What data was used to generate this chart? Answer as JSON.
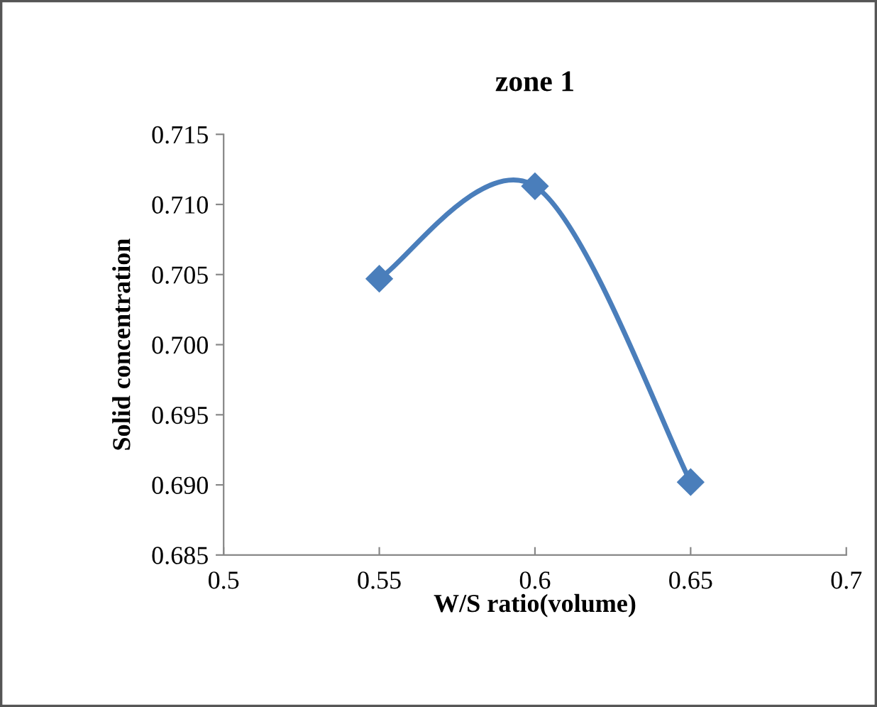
{
  "chart_data": {
    "type": "line",
    "title": "zone 1",
    "xlabel": "W/S ratio(volume)",
    "ylabel": "Solid concentration",
    "x": [
      0.55,
      0.6,
      0.65
    ],
    "series": [
      {
        "color": "#4a7ebb",
        "values": [
          0.7047,
          0.7113,
          0.6902
        ]
      }
    ],
    "xlim": [
      0.5,
      0.7
    ],
    "xticks": [
      0.5,
      0.55,
      0.6,
      0.65,
      0.7
    ],
    "ylim": [
      0.685,
      0.715
    ],
    "yticks": [
      {
        "value": 0.685,
        "label": "0.685"
      },
      {
        "value": 0.69,
        "label": "0.690"
      },
      {
        "value": 0.695,
        "label": "0.695"
      },
      {
        "value": 0.7,
        "label": "0.700"
      },
      {
        "value": 0.705,
        "label": "0.705"
      },
      {
        "value": 0.71,
        "label": "0.710"
      },
      {
        "value": 0.715,
        "label": "0.715"
      }
    ],
    "marker": "diamond",
    "line_style": "solid",
    "grid": false,
    "legend": false
  }
}
